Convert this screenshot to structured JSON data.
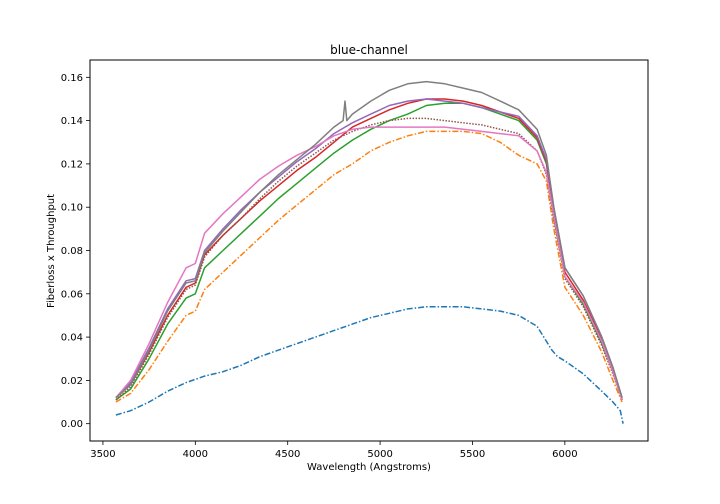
{
  "chart_data": {
    "type": "line",
    "title": "blue-channel",
    "xlabel": "Wavelength (Angstroms)",
    "ylabel": "Fiberloss x Throughput",
    "xlim": [
      3430,
      6450
    ],
    "ylim": [
      -0.008,
      0.168
    ],
    "xticks": [
      3500,
      4000,
      4500,
      5000,
      5500,
      6000
    ],
    "yticks": [
      0.0,
      0.02,
      0.04,
      0.06,
      0.08,
      0.1,
      0.12,
      0.14,
      0.16
    ],
    "grid": false,
    "series": [
      {
        "color": "#1f77b4",
        "style": "dashdot",
        "x": [
          3570,
          3650,
          3750,
          3850,
          3950,
          4050,
          4150,
          4250,
          4350,
          4450,
          4550,
          4650,
          4750,
          4850,
          4950,
          5050,
          5150,
          5250,
          5350,
          5450,
          5550,
          5650,
          5750,
          5850,
          5930,
          5960,
          6000,
          6100,
          6200,
          6260,
          6300,
          6315
        ],
        "y": [
          0.004,
          0.006,
          0.01,
          0.015,
          0.019,
          0.022,
          0.024,
          0.027,
          0.031,
          0.034,
          0.037,
          0.04,
          0.043,
          0.046,
          0.049,
          0.051,
          0.053,
          0.054,
          0.054,
          0.054,
          0.053,
          0.052,
          0.05,
          0.045,
          0.034,
          0.031,
          0.029,
          0.023,
          0.015,
          0.01,
          0.006,
          0.0
        ]
      },
      {
        "color": "#ff7f0e",
        "style": "dashdot",
        "x": [
          3570,
          3650,
          3750,
          3850,
          3950,
          4000,
          4050,
          4150,
          4250,
          4350,
          4450,
          4550,
          4650,
          4750,
          4850,
          4950,
          5050,
          5150,
          5250,
          5350,
          5450,
          5550,
          5650,
          5750,
          5850,
          5900,
          5940,
          6000,
          6100,
          6200,
          6260,
          6310
        ],
        "y": [
          0.01,
          0.014,
          0.025,
          0.038,
          0.05,
          0.052,
          0.062,
          0.07,
          0.078,
          0.086,
          0.094,
          0.101,
          0.108,
          0.115,
          0.12,
          0.126,
          0.13,
          0.133,
          0.135,
          0.135,
          0.135,
          0.134,
          0.13,
          0.124,
          0.12,
          0.112,
          0.09,
          0.063,
          0.05,
          0.033,
          0.02,
          0.01
        ]
      },
      {
        "color": "#2ca02c",
        "style": "solid",
        "x": [
          3570,
          3650,
          3750,
          3850,
          3950,
          4000,
          4050,
          4150,
          4250,
          4350,
          4450,
          4550,
          4650,
          4750,
          4850,
          4950,
          5050,
          5150,
          5250,
          5350,
          5450,
          5550,
          5650,
          5750,
          5850,
          5900,
          5940,
          6000,
          6100,
          6200,
          6260,
          6310
        ],
        "y": [
          0.011,
          0.016,
          0.03,
          0.046,
          0.058,
          0.06,
          0.072,
          0.08,
          0.088,
          0.096,
          0.104,
          0.111,
          0.118,
          0.125,
          0.131,
          0.136,
          0.14,
          0.143,
          0.147,
          0.148,
          0.148,
          0.146,
          0.143,
          0.14,
          0.131,
          0.12,
          0.095,
          0.068,
          0.055,
          0.037,
          0.024,
          0.011
        ]
      },
      {
        "color": "#d62728",
        "style": "solid",
        "x": [
          3570,
          3650,
          3750,
          3850,
          3950,
          4000,
          4050,
          4150,
          4250,
          4350,
          4450,
          4550,
          4650,
          4750,
          4850,
          4950,
          5050,
          5150,
          5250,
          5350,
          5450,
          5550,
          5650,
          5750,
          5850,
          5900,
          5940,
          6000,
          6100,
          6200,
          6260,
          6310
        ],
        "y": [
          0.012,
          0.018,
          0.033,
          0.05,
          0.063,
          0.065,
          0.078,
          0.087,
          0.095,
          0.103,
          0.11,
          0.117,
          0.123,
          0.13,
          0.137,
          0.141,
          0.145,
          0.148,
          0.15,
          0.15,
          0.149,
          0.147,
          0.144,
          0.141,
          0.132,
          0.121,
          0.097,
          0.07,
          0.057,
          0.039,
          0.025,
          0.011
        ]
      },
      {
        "color": "#9467bd",
        "style": "solid",
        "x": [
          3570,
          3650,
          3750,
          3850,
          3950,
          4000,
          4050,
          4150,
          4250,
          4350,
          4450,
          4550,
          4650,
          4750,
          4850,
          4950,
          5050,
          5150,
          5250,
          5350,
          5450,
          5550,
          5650,
          5750,
          5850,
          5900,
          5940,
          6000,
          6100,
          6200,
          6260,
          6310
        ],
        "y": [
          0.012,
          0.019,
          0.035,
          0.053,
          0.066,
          0.067,
          0.08,
          0.09,
          0.099,
          0.107,
          0.114,
          0.121,
          0.127,
          0.134,
          0.139,
          0.143,
          0.147,
          0.149,
          0.15,
          0.149,
          0.148,
          0.146,
          0.144,
          0.142,
          0.133,
          0.122,
          0.1,
          0.072,
          0.059,
          0.04,
          0.026,
          0.012
        ]
      },
      {
        "color": "#8c564b",
        "style": "dotted",
        "x": [
          3570,
          3650,
          3750,
          3850,
          3950,
          4000,
          4050,
          4150,
          4250,
          4350,
          4450,
          4550,
          4650,
          4750,
          4850,
          4950,
          5050,
          5150,
          5250,
          5350,
          5450,
          5550,
          5650,
          5750,
          5850,
          5900,
          5940,
          6000,
          6100,
          6200,
          6260,
          6310
        ],
        "y": [
          0.011,
          0.017,
          0.032,
          0.049,
          0.062,
          0.064,
          0.077,
          0.087,
          0.095,
          0.104,
          0.112,
          0.119,
          0.125,
          0.131,
          0.135,
          0.138,
          0.14,
          0.141,
          0.141,
          0.14,
          0.139,
          0.138,
          0.136,
          0.134,
          0.126,
          0.115,
          0.094,
          0.067,
          0.054,
          0.036,
          0.023,
          0.011
        ]
      },
      {
        "color": "#e377c2",
        "style": "solid",
        "x": [
          3570,
          3650,
          3750,
          3850,
          3950,
          4000,
          4050,
          4150,
          4250,
          4350,
          4450,
          4550,
          4650,
          4750,
          4850,
          4950,
          5050,
          5150,
          5250,
          5350,
          5450,
          5550,
          5650,
          5750,
          5850,
          5900,
          5940,
          6000,
          6100,
          6200,
          6260,
          6310
        ],
        "y": [
          0.012,
          0.02,
          0.037,
          0.056,
          0.072,
          0.074,
          0.088,
          0.097,
          0.105,
          0.113,
          0.119,
          0.124,
          0.128,
          0.133,
          0.136,
          0.137,
          0.137,
          0.137,
          0.137,
          0.137,
          0.136,
          0.135,
          0.134,
          0.133,
          0.126,
          0.116,
          0.096,
          0.068,
          0.056,
          0.038,
          0.024,
          0.011
        ]
      },
      {
        "color": "#7f7f7f",
        "style": "solid",
        "x": [
          3570,
          3650,
          3750,
          3850,
          3950,
          4000,
          4050,
          4150,
          4250,
          4350,
          4450,
          4550,
          4650,
          4750,
          4800,
          4810,
          4820,
          4850,
          4950,
          5050,
          5150,
          5250,
          5350,
          5450,
          5550,
          5650,
          5750,
          5850,
          5900,
          5940,
          6000,
          6100,
          6200,
          6260,
          6310
        ],
        "y": [
          0.012,
          0.018,
          0.034,
          0.052,
          0.065,
          0.066,
          0.079,
          0.089,
          0.098,
          0.107,
          0.115,
          0.122,
          0.129,
          0.137,
          0.14,
          0.149,
          0.14,
          0.143,
          0.149,
          0.154,
          0.157,
          0.158,
          0.157,
          0.155,
          0.153,
          0.149,
          0.145,
          0.136,
          0.124,
          0.1,
          0.072,
          0.059,
          0.04,
          0.026,
          0.012
        ]
      }
    ]
  }
}
